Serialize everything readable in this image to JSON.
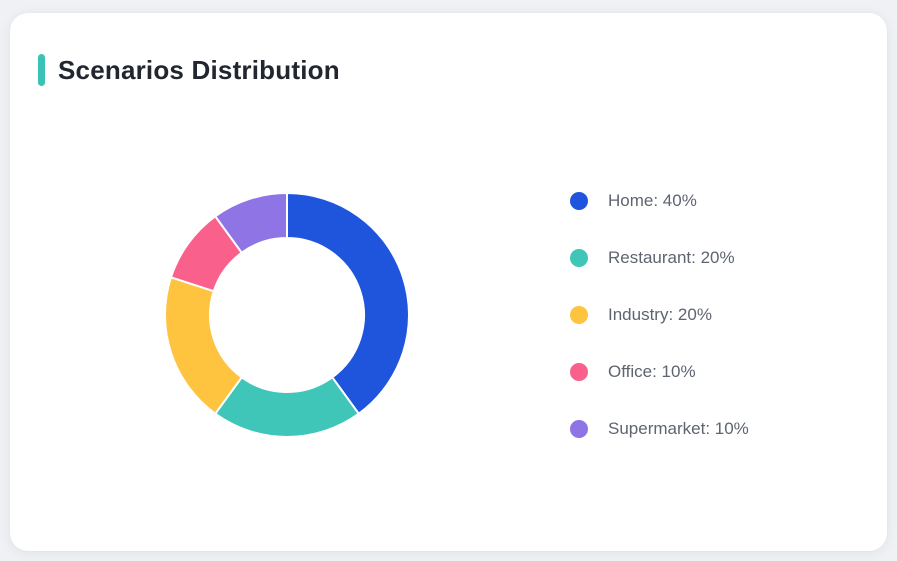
{
  "page": {
    "background_color": "#EFF1F4",
    "card_background_color": "#FFFFFF"
  },
  "header": {
    "title": "Scenarios Distribution",
    "accent_color": "#3BC2B7",
    "title_color": "#21262F"
  },
  "chart_data": {
    "type": "pie",
    "subtype": "donut",
    "title": "Scenarios Distribution",
    "categories": [
      "Home",
      "Restaurant",
      "Industry",
      "Office",
      "Supermarket"
    ],
    "values": [
      40,
      20,
      20,
      10,
      10
    ],
    "unit": "%",
    "colors": [
      "#1E55DC",
      "#3FC6B9",
      "#FEC43F",
      "#F9618C",
      "#8F74E6"
    ],
    "legend_labels": [
      "Home: 40%",
      "Restaurant: 20%",
      "Industry: 20%",
      "Office: 10%",
      "Supermarket: 10%"
    ],
    "legend_position": "right",
    "legend_text_color": "#5E6470",
    "start_angle_deg": 0,
    "direction": "clockwise",
    "outer_radius_px": 122,
    "inner_radius_px": 77,
    "segment_gap_color": "#FFFFFF"
  }
}
